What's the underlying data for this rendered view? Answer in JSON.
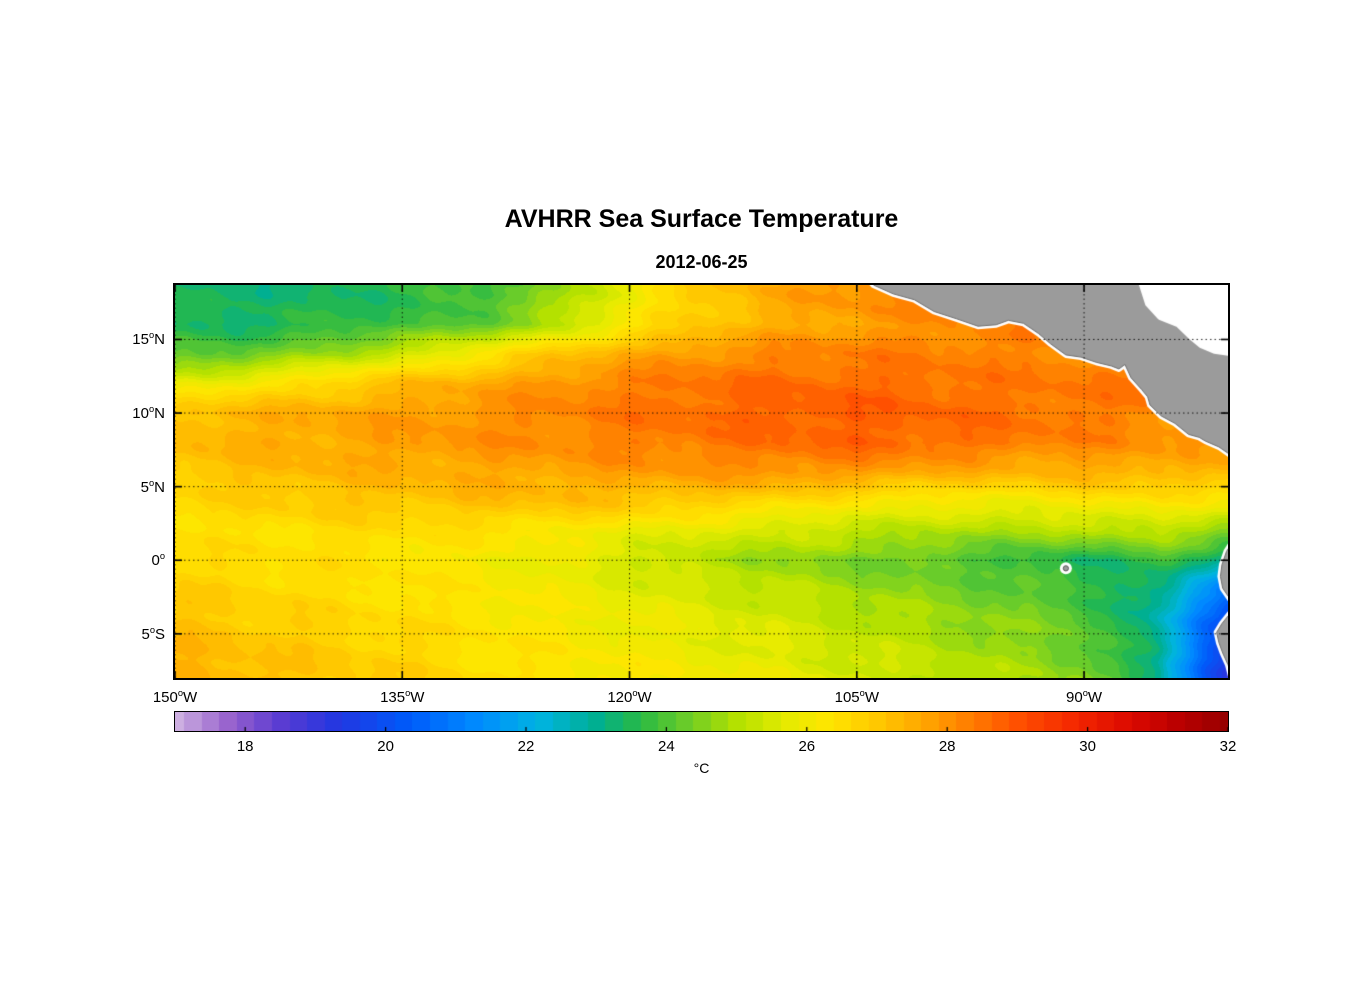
{
  "title": "AVHRR Sea Surface Temperature",
  "subtitle": "2012-06-25",
  "colorbar": {
    "unit": "°C",
    "range": [
      17,
      32
    ],
    "ticks": [
      18,
      20,
      22,
      24,
      26,
      28,
      30,
      32
    ]
  },
  "chart_data": {
    "type": "heatmap",
    "title": "AVHRR Sea Surface Temperature",
    "subtitle": "2012-06-25",
    "xlabel": "",
    "ylabel": "",
    "grid": true,
    "lon_range": [
      -150,
      -80.5
    ],
    "lat_range": [
      -8,
      18.7
    ],
    "xticks": [
      {
        "value": -150,
        "label": "150°W"
      },
      {
        "value": -135,
        "label": "135°W"
      },
      {
        "value": -120,
        "label": "120°W"
      },
      {
        "value": -105,
        "label": "105°W"
      },
      {
        "value": -90,
        "label": "90°W"
      }
    ],
    "yticks": [
      {
        "value": 15,
        "label": "15°N"
      },
      {
        "value": 10,
        "label": "10°N"
      },
      {
        "value": 5,
        "label": "5°N"
      },
      {
        "value": 0,
        "label": "0°"
      },
      {
        "value": -5,
        "label": "5°S"
      }
    ],
    "sst_grid": {
      "units": "°C",
      "lons": [
        -150,
        -145,
        -140,
        -135,
        -130,
        -125,
        -120,
        -115,
        -110,
        -105,
        -100,
        -95,
        -90,
        -85,
        -80
      ],
      "lats": [
        -8,
        -6,
        -4,
        -2,
        0,
        2,
        4,
        6,
        8,
        10,
        12,
        14,
        16,
        18
      ],
      "values_c": [
        [
          27.6,
          27.3,
          27.0,
          26.8,
          26.5,
          26.3,
          26.2,
          26.0,
          25.8,
          25.5,
          25.2,
          24.9,
          24.5,
          23.0,
          18.6
        ],
        [
          27.4,
          27.1,
          26.9,
          26.7,
          26.4,
          26.2,
          26.0,
          25.8,
          25.6,
          25.3,
          25.0,
          24.7,
          24.3,
          23.0,
          18.9
        ],
        [
          27.1,
          26.9,
          26.7,
          26.5,
          26.3,
          26.1,
          25.9,
          25.7,
          25.4,
          25.1,
          24.8,
          24.5,
          24.1,
          22.7,
          19.6
        ],
        [
          26.8,
          26.7,
          26.5,
          26.4,
          26.2,
          26.0,
          25.7,
          25.4,
          25.1,
          24.8,
          24.5,
          24.2,
          23.8,
          22.9,
          20.6
        ],
        [
          26.5,
          26.5,
          26.4,
          26.3,
          26.1,
          25.8,
          25.4,
          25.0,
          24.7,
          24.4,
          24.1,
          23.8,
          23.4,
          23.8,
          23.0
        ],
        [
          26.4,
          26.4,
          26.5,
          26.5,
          26.4,
          26.2,
          25.9,
          25.6,
          25.4,
          25.2,
          25.0,
          24.9,
          25.0,
          25.2,
          24.6
        ],
        [
          26.6,
          26.8,
          27.0,
          27.1,
          27.2,
          27.2,
          27.1,
          26.9,
          26.6,
          26.2,
          26.0,
          26.0,
          26.2,
          26.3,
          26.0
        ],
        [
          27.0,
          27.2,
          27.4,
          27.5,
          27.6,
          27.7,
          27.8,
          27.9,
          28.0,
          27.9,
          27.6,
          27.4,
          27.5,
          27.5,
          27.2
        ],
        [
          27.3,
          27.5,
          27.6,
          27.8,
          28.0,
          28.1,
          28.3,
          28.4,
          28.6,
          28.7,
          28.6,
          28.4,
          28.2,
          28.0,
          27.8
        ],
        [
          27.2,
          27.4,
          27.6,
          27.8,
          28.0,
          28.2,
          28.4,
          28.6,
          28.8,
          28.8,
          28.7,
          28.5,
          28.4,
          28.2,
          28.0
        ],
        [
          25.8,
          26.2,
          26.7,
          27.2,
          27.6,
          28.0,
          28.3,
          28.5,
          28.6,
          28.6,
          28.5,
          28.4,
          28.4,
          28.3,
          28.2
        ],
        [
          24.0,
          24.2,
          24.8,
          25.4,
          26.2,
          27.0,
          27.6,
          28.0,
          28.2,
          28.3,
          28.3,
          28.2,
          28.2,
          28.2,
          28.2
        ],
        [
          23.4,
          23.4,
          23.6,
          23.8,
          24.2,
          25.0,
          26.2,
          27.0,
          27.5,
          27.8,
          28.0,
          28.2,
          28.3,
          28.3,
          28.3
        ],
        [
          23.3,
          23.3,
          23.4,
          23.6,
          23.8,
          24.6,
          26.0,
          27.0,
          27.6,
          28.0,
          28.3,
          28.5,
          28.5,
          28.5,
          28.5
        ]
      ]
    },
    "colormap_stops": [
      [
        17.0,
        205,
        175,
        225
      ],
      [
        17.8,
        150,
        95,
        205
      ],
      [
        18.5,
        90,
        60,
        210
      ],
      [
        19.3,
        35,
        55,
        225
      ],
      [
        20.3,
        0,
        90,
        250
      ],
      [
        21.3,
        0,
        140,
        255
      ],
      [
        22.2,
        0,
        180,
        225
      ],
      [
        23.0,
        0,
        175,
        145
      ],
      [
        23.6,
        40,
        185,
        70
      ],
      [
        24.3,
        110,
        205,
        40
      ],
      [
        25.0,
        180,
        225,
        0
      ],
      [
        25.7,
        230,
        235,
        0
      ],
      [
        26.3,
        255,
        230,
        0
      ],
      [
        27.0,
        255,
        200,
        0
      ],
      [
        27.7,
        255,
        165,
        0
      ],
      [
        28.4,
        255,
        120,
        0
      ],
      [
        29.0,
        255,
        80,
        0
      ],
      [
        29.8,
        245,
        40,
        0
      ],
      [
        30.6,
        220,
        10,
        0
      ],
      [
        31.3,
        185,
        0,
        0
      ],
      [
        32.0,
        150,
        0,
        0
      ]
    ],
    "land": {
      "fill_color": "#9b9b9b",
      "coast_halo_color": "#ffffff",
      "outline_color": "#6e6e6e",
      "polygons": {
        "central_america": [
          [
            -103.9,
            18.7
          ],
          [
            -102.6,
            18.1
          ],
          [
            -101.2,
            17.7
          ],
          [
            -99.9,
            16.9
          ],
          [
            -98.4,
            16.4
          ],
          [
            -97.0,
            15.9
          ],
          [
            -95.8,
            16.0
          ],
          [
            -95.0,
            16.3
          ],
          [
            -94.0,
            16.1
          ],
          [
            -93.0,
            15.4
          ],
          [
            -92.2,
            14.7
          ],
          [
            -91.2,
            13.95
          ],
          [
            -90.2,
            13.8
          ],
          [
            -89.2,
            13.45
          ],
          [
            -88.2,
            13.2
          ],
          [
            -87.7,
            13.0
          ],
          [
            -87.3,
            13.3
          ],
          [
            -86.9,
            12.4
          ],
          [
            -86.2,
            11.6
          ],
          [
            -85.8,
            11.1
          ],
          [
            -85.65,
            10.55
          ],
          [
            -85.2,
            10.1
          ],
          [
            -84.9,
            9.8
          ],
          [
            -84.0,
            9.3
          ],
          [
            -83.1,
            8.55
          ],
          [
            -82.4,
            8.35
          ],
          [
            -82.0,
            8.1
          ],
          [
            -81.1,
            7.7
          ],
          [
            -80.4,
            7.2
          ],
          [
            -78.8,
            6.8
          ],
          [
            -78.8,
            19.5
          ],
          [
            -104.6,
            19.5
          ]
        ],
        "caribbean_mask": [
          [
            -86.3,
            19.0
          ],
          [
            -85.8,
            17.4
          ],
          [
            -85.0,
            16.5
          ],
          [
            -83.8,
            16.0
          ],
          [
            -83.0,
            15.2
          ],
          [
            -82.3,
            14.6
          ],
          [
            -81.4,
            14.2
          ],
          [
            -80.0,
            14.0
          ],
          [
            -78.8,
            14.2
          ],
          [
            -78.8,
            19.0
          ]
        ],
        "south_america": [
          [
            -80.1,
            1.4
          ],
          [
            -80.6,
            0.6
          ],
          [
            -80.9,
            -0.3
          ],
          [
            -81.0,
            -1.1
          ],
          [
            -80.85,
            -1.9
          ],
          [
            -80.45,
            -2.5
          ],
          [
            -80.1,
            -3.0
          ],
          [
            -80.35,
            -3.6
          ],
          [
            -80.9,
            -4.3
          ],
          [
            -81.25,
            -4.9
          ],
          [
            -81.1,
            -5.6
          ],
          [
            -80.85,
            -6.3
          ],
          [
            -80.5,
            -7.1
          ],
          [
            -80.2,
            -8.3
          ],
          [
            -79.2,
            -8.6
          ],
          [
            -79.2,
            1.8
          ]
        ]
      },
      "galapagos": {
        "lon": -91.2,
        "lat": -0.55
      }
    }
  }
}
